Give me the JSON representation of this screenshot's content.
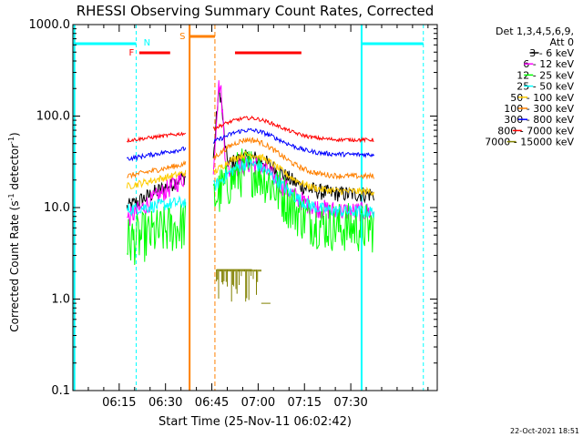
{
  "chart_data": {
    "type": "line",
    "title": "RHESSI Observing Summary Count Rates, Corrected",
    "xlabel": "Start Time (25-Nov-11 06:02:42)",
    "ylabel_main": "Corrected Count Rate (s",
    "ylabel_sup1": "-1",
    "ylabel_mid": " detector",
    "ylabel_sup2": "-1",
    "ylabel_end": ")",
    "yscale": "log",
    "ylim": [
      0.1,
      1000
    ],
    "y_ticks": [
      {
        "v": 0.1,
        "label": "0.1"
      },
      {
        "v": 1,
        "label": "1.0"
      },
      {
        "v": 10,
        "label": "10.0"
      },
      {
        "v": 100,
        "label": "100.0"
      },
      {
        "v": 1000,
        "label": "1000.0"
      }
    ],
    "xlim_min": [
      0,
      118
    ],
    "x_ticks": [
      {
        "m": 15,
        "label": "06:15"
      },
      {
        "m": 30,
        "label": "06:30"
      },
      {
        "m": 45,
        "label": "06:45"
      },
      {
        "m": 60,
        "label": "07:00"
      },
      {
        "m": 75,
        "label": "07:15"
      },
      {
        "m": 90,
        "label": "07:30"
      }
    ],
    "legend": {
      "header1": "Det 1,3,4,5,6,9,",
      "header2": "Att 0",
      "position": "top-right"
    },
    "series": [
      {
        "name": "3 - 6 keV",
        "color": "#000000"
      },
      {
        "name": "6 - 12 keV",
        "color": "#ff00ff"
      },
      {
        "name": "12 - 25 keV",
        "color": "#00ff00"
      },
      {
        "name": "25 - 50 keV",
        "color": "#00ffff"
      },
      {
        "name": "50 - 100 keV",
        "color": "#ffcc00"
      },
      {
        "name": "100 - 300 keV",
        "color": "#ff8000"
      },
      {
        "name": "300 - 800 keV",
        "color": "#0000ff"
      },
      {
        "name": "800 - 7000 keV",
        "color": "#ff0000"
      },
      {
        "name": "7000 - 15000 keV",
        "color": "#808000"
      }
    ],
    "flags": [
      {
        "code": "N",
        "label": "N",
        "color": "#00ffff"
      },
      {
        "code": "F",
        "label": "F",
        "color": "#ff0000"
      },
      {
        "code": "S",
        "label": "S",
        "color": "#ff8000"
      }
    ],
    "footer_timestamp": "22-Oct-2021 18:51"
  }
}
